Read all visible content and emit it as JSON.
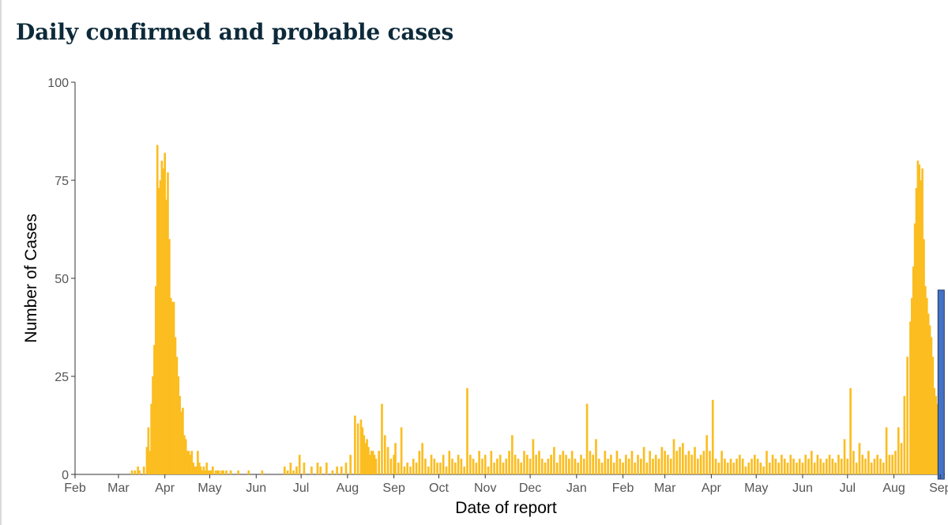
{
  "page": {
    "title": "Daily confirmed and probable cases"
  },
  "chart_data": {
    "type": "bar",
    "title": "Daily confirmed and probable cases",
    "xlabel": "Date of report",
    "ylabel": "Number of Cases",
    "ylim": [
      0,
      100
    ],
    "yticks": [
      0,
      25,
      50,
      75,
      100
    ],
    "grid": false,
    "legend": "none",
    "xtick_labels": [
      "Feb",
      "Mar",
      "Apr",
      "May",
      "Jun",
      "Jul",
      "Aug",
      "Sep",
      "Oct",
      "Nov",
      "Dec",
      "Jan",
      "Feb",
      "Mar",
      "Apr",
      "May",
      "Jun",
      "Jul",
      "Aug",
      "Sep"
    ],
    "colors": {
      "bars": "#FBBD20",
      "latest_bar": "#4472C4",
      "latest_bar_edge": "#1F3864"
    },
    "x": [
      "2020-03-10",
      "2020-03-12",
      "2020-03-14",
      "2020-03-15",
      "2020-03-18",
      "2020-03-20",
      "2020-03-21",
      "2020-03-22",
      "2020-03-23",
      "2020-03-24",
      "2020-03-25",
      "2020-03-26",
      "2020-03-27",
      "2020-03-28",
      "2020-03-29",
      "2020-03-30",
      "2020-03-31",
      "2020-04-01",
      "2020-04-02",
      "2020-04-03",
      "2020-04-04",
      "2020-04-05",
      "2020-04-06",
      "2020-04-07",
      "2020-04-08",
      "2020-04-09",
      "2020-04-10",
      "2020-04-11",
      "2020-04-12",
      "2020-04-13",
      "2020-04-14",
      "2020-04-15",
      "2020-04-16",
      "2020-04-17",
      "2020-04-18",
      "2020-04-19",
      "2020-04-20",
      "2020-04-21",
      "2020-04-22",
      "2020-04-23",
      "2020-04-24",
      "2020-04-25",
      "2020-04-26",
      "2020-04-27",
      "2020-04-28",
      "2020-04-29",
      "2020-04-30",
      "2020-05-01",
      "2020-05-02",
      "2020-05-03",
      "2020-05-05",
      "2020-05-06",
      "2020-05-07",
      "2020-05-09",
      "2020-05-10",
      "2020-05-12",
      "2020-05-15",
      "2020-05-20",
      "2020-05-27",
      "2020-06-05",
      "2020-06-20",
      "2020-06-22",
      "2020-06-24",
      "2020-06-26",
      "2020-06-28",
      "2020-06-30",
      "2020-07-03",
      "2020-07-08",
      "2020-07-12",
      "2020-07-14",
      "2020-07-18",
      "2020-07-22",
      "2020-07-25",
      "2020-07-28",
      "2020-07-31",
      "2020-08-03",
      "2020-08-06",
      "2020-08-08",
      "2020-08-10",
      "2020-08-11",
      "2020-08-12",
      "2020-08-13",
      "2020-08-14",
      "2020-08-15",
      "2020-08-16",
      "2020-08-17",
      "2020-08-18",
      "2020-08-19",
      "2020-08-20",
      "2020-08-22",
      "2020-08-24",
      "2020-08-26",
      "2020-08-28",
      "2020-08-30",
      "2020-09-01",
      "2020-09-02",
      "2020-09-04",
      "2020-09-06",
      "2020-09-08",
      "2020-09-10",
      "2020-09-12",
      "2020-09-14",
      "2020-09-16",
      "2020-09-18",
      "2020-09-20",
      "2020-09-22",
      "2020-09-24",
      "2020-09-26",
      "2020-09-28",
      "2020-09-30",
      "2020-10-02",
      "2020-10-04",
      "2020-10-06",
      "2020-10-08",
      "2020-10-10",
      "2020-10-12",
      "2020-10-14",
      "2020-10-16",
      "2020-10-18",
      "2020-10-20",
      "2020-10-22",
      "2020-10-24",
      "2020-10-26",
      "2020-10-28",
      "2020-10-30",
      "2020-11-01",
      "2020-11-03",
      "2020-11-05",
      "2020-11-07",
      "2020-11-09",
      "2020-11-11",
      "2020-11-13",
      "2020-11-15",
      "2020-11-17",
      "2020-11-19",
      "2020-11-21",
      "2020-11-23",
      "2020-11-25",
      "2020-11-27",
      "2020-11-29",
      "2020-12-01",
      "2020-12-03",
      "2020-12-05",
      "2020-12-07",
      "2020-12-09",
      "2020-12-11",
      "2020-12-13",
      "2020-12-15",
      "2020-12-17",
      "2020-12-19",
      "2020-12-21",
      "2020-12-23",
      "2020-12-25",
      "2020-12-27",
      "2020-12-29",
      "2020-12-31",
      "2021-01-02",
      "2021-01-04",
      "2021-01-06",
      "2021-01-08",
      "2021-01-10",
      "2021-01-12",
      "2021-01-14",
      "2021-01-16",
      "2021-01-18",
      "2021-01-20",
      "2021-01-22",
      "2021-01-24",
      "2021-01-26",
      "2021-01-28",
      "2021-01-30",
      "2021-02-01",
      "2021-02-03",
      "2021-02-05",
      "2021-02-07",
      "2021-02-09",
      "2021-02-11",
      "2021-02-13",
      "2021-02-15",
      "2021-02-17",
      "2021-02-19",
      "2021-02-21",
      "2021-02-23",
      "2021-02-25",
      "2021-02-27",
      "2021-03-01",
      "2021-03-03",
      "2021-03-05",
      "2021-03-07",
      "2021-03-09",
      "2021-03-11",
      "2021-03-13",
      "2021-03-15",
      "2021-03-17",
      "2021-03-19",
      "2021-03-21",
      "2021-03-23",
      "2021-03-25",
      "2021-03-27",
      "2021-03-29",
      "2021-03-31",
      "2021-04-02",
      "2021-04-04",
      "2021-04-06",
      "2021-04-08",
      "2021-04-10",
      "2021-04-12",
      "2021-04-14",
      "2021-04-16",
      "2021-04-18",
      "2021-04-20",
      "2021-04-22",
      "2021-04-24",
      "2021-04-26",
      "2021-04-28",
      "2021-04-30",
      "2021-05-02",
      "2021-05-04",
      "2021-05-06",
      "2021-05-08",
      "2021-05-10",
      "2021-05-12",
      "2021-05-14",
      "2021-05-16",
      "2021-05-18",
      "2021-05-20",
      "2021-05-22",
      "2021-05-24",
      "2021-05-26",
      "2021-05-28",
      "2021-05-30",
      "2021-06-01",
      "2021-06-03",
      "2021-06-05",
      "2021-06-07",
      "2021-06-09",
      "2021-06-11",
      "2021-06-13",
      "2021-06-15",
      "2021-06-17",
      "2021-06-19",
      "2021-06-21",
      "2021-06-23",
      "2021-06-25",
      "2021-06-27",
      "2021-06-29",
      "2021-07-01",
      "2021-07-03",
      "2021-07-05",
      "2021-07-07",
      "2021-07-09",
      "2021-07-11",
      "2021-07-13",
      "2021-07-15",
      "2021-07-17",
      "2021-07-19",
      "2021-07-21",
      "2021-07-23",
      "2021-07-25",
      "2021-07-27",
      "2021-07-29",
      "2021-07-31",
      "2021-08-02",
      "2021-08-04",
      "2021-08-06",
      "2021-08-08",
      "2021-08-10",
      "2021-08-12",
      "2021-08-13",
      "2021-08-14",
      "2021-08-15",
      "2021-08-16",
      "2021-08-17",
      "2021-08-18",
      "2021-08-19",
      "2021-08-20",
      "2021-08-21",
      "2021-08-22",
      "2021-08-23",
      "2021-08-24",
      "2021-08-25",
      "2021-08-26",
      "2021-08-27",
      "2021-08-28",
      "2021-08-29",
      "2021-08-30",
      "2021-08-31",
      "2021-09-01"
    ],
    "values": [
      1,
      1,
      2,
      1,
      2,
      7,
      12,
      6,
      18,
      25,
      33,
      48,
      84,
      73,
      75,
      80,
      78,
      82,
      70,
      77,
      60,
      45,
      44,
      44,
      35,
      30,
      25,
      20,
      16,
      17,
      10,
      9,
      6,
      6,
      5,
      6,
      3,
      2,
      2,
      6,
      3,
      2,
      1,
      2,
      1,
      3,
      1,
      1,
      1,
      2,
      1,
      1,
      1,
      1,
      1,
      1,
      1,
      1,
      1,
      1,
      2,
      1,
      3,
      1,
      2,
      5,
      3,
      2,
      3,
      2,
      3,
      1,
      2,
      2,
      3,
      5,
      15,
      13,
      14,
      12,
      10,
      8,
      9,
      7,
      5,
      6,
      6,
      5,
      4,
      6,
      18,
      10,
      7,
      4,
      5,
      8,
      3,
      12,
      2,
      3,
      2,
      4,
      3,
      6,
      8,
      4,
      2,
      5,
      4,
      3,
      3,
      5,
      2,
      6,
      4,
      3,
      5,
      4,
      2,
      22,
      5,
      4,
      3,
      6,
      4,
      5,
      2,
      6,
      3,
      4,
      5,
      3,
      4,
      6,
      10,
      5,
      4,
      3,
      6,
      5,
      4,
      9,
      5,
      6,
      4,
      3,
      4,
      5,
      7,
      3,
      5,
      6,
      5,
      4,
      6,
      4,
      3,
      5,
      4,
      18,
      6,
      5,
      9,
      4,
      3,
      6,
      4,
      5,
      3,
      6,
      4,
      3,
      5,
      4,
      6,
      3,
      5,
      4,
      7,
      3,
      6,
      4,
      5,
      4,
      7,
      6,
      5,
      4,
      9,
      6,
      7,
      8,
      5,
      6,
      5,
      7,
      4,
      5,
      6,
      10,
      6,
      19,
      4,
      3,
      6,
      4,
      3,
      4,
      3,
      4,
      5,
      4,
      2,
      3,
      4,
      5,
      4,
      3,
      2,
      6,
      3,
      5,
      4,
      3,
      5,
      4,
      3,
      5,
      4,
      3,
      4,
      3,
      5,
      4,
      6,
      3,
      5,
      4,
      3,
      4,
      5,
      4,
      3,
      5,
      4,
      9,
      4,
      22,
      6,
      3,
      8,
      5,
      4,
      6,
      3,
      4,
      5,
      4,
      3,
      12,
      5,
      5,
      6,
      12,
      8,
      20,
      30,
      39,
      45,
      53,
      64,
      73,
      80,
      79,
      75,
      78,
      60,
      48,
      45,
      41,
      38,
      35,
      30,
      22,
      20,
      18,
      15,
      47
    ]
  }
}
